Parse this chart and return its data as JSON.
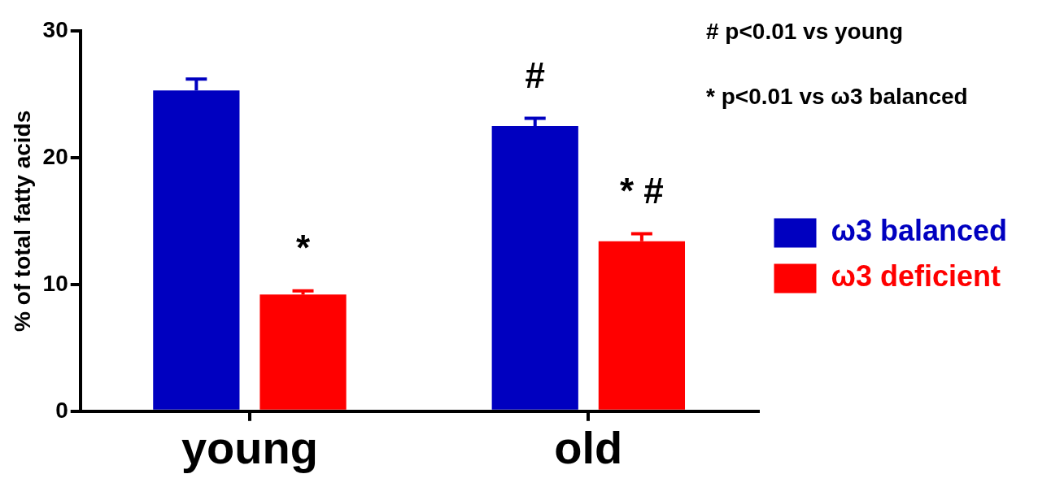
{
  "chart_data": {
    "type": "bar",
    "ylabel": "% of total fatty acids",
    "categories": [
      "young",
      "old"
    ],
    "series": [
      {
        "name": "ω3 balanced",
        "color": "#0000c0",
        "values": [
          25.3,
          22.5
        ],
        "errors": [
          [
            25.3,
            26.2
          ],
          [
            22.5,
            23.1
          ]
        ],
        "value_labels": [
          null,
          "#"
        ]
      },
      {
        "name": "ω3 deficient",
        "color": "#ff0000",
        "values": [
          9.2,
          13.4
        ],
        "errors": [
          [
            9.2,
            9.5
          ],
          [
            13.4,
            14.0
          ]
        ],
        "value_labels": [
          "*",
          "* #"
        ]
      }
    ],
    "ylim": [
      0,
      30
    ],
    "yticks": [
      0,
      10,
      20,
      30
    ],
    "grid": false,
    "legend": "right",
    "annotations": [
      "# p<0.01 vs young",
      "* p<0.01 vs ω3 balanced"
    ]
  }
}
